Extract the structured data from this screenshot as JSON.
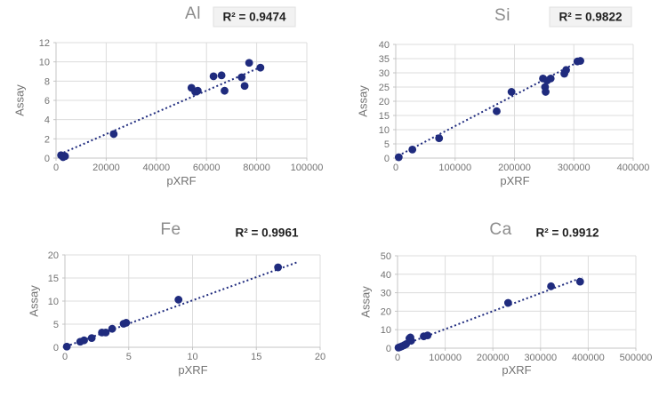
{
  "colors": {
    "background": "#ffffff",
    "point": "#1f2b7e",
    "trendline": "#1f2b7e",
    "gridline": "#dcdcdc",
    "axis_line": "#c4c4c4",
    "title_text": "#8c8c8c",
    "tick_text": "#737373",
    "axis_label_text": "#737373",
    "r2_text": "#1f1f1f",
    "r2_box_fill": "#f2f2f2",
    "r2_box_border": "#e0e0e0"
  },
  "chart_data": [
    {
      "type": "scatter",
      "title": "Al",
      "r2_label": "R² = 0.9474",
      "r2_boxed": true,
      "xlabel": "pXRF",
      "ylabel": "Assay",
      "xlim": [
        0,
        100000
      ],
      "ylim": [
        0,
        12
      ],
      "xticks": [
        0,
        20000,
        40000,
        60000,
        80000,
        100000
      ],
      "yticks": [
        0,
        2,
        4,
        6,
        8,
        10,
        12
      ],
      "grid": true,
      "legend": "none",
      "points": [
        [
          2000,
          0.3
        ],
        [
          2800,
          0.1
        ],
        [
          3600,
          0.2
        ],
        [
          23000,
          2.5
        ],
        [
          54000,
          7.3
        ],
        [
          55500,
          6.9
        ],
        [
          56500,
          7.0
        ],
        [
          62800,
          8.5
        ],
        [
          66000,
          8.6
        ],
        [
          67200,
          7.0
        ],
        [
          74000,
          8.4
        ],
        [
          75200,
          7.5
        ],
        [
          77000,
          9.9
        ],
        [
          81500,
          9.4
        ]
      ],
      "trendline": {
        "style": "dotted",
        "x1": 1500,
        "y1": 0.4,
        "x2": 82000,
        "y2": 9.5
      }
    },
    {
      "type": "scatter",
      "title": "Si",
      "r2_label": "R² = 0.9822",
      "r2_boxed": true,
      "xlabel": "pXRF",
      "ylabel": "Assay",
      "xlim": [
        0,
        400000
      ],
      "ylim": [
        0,
        40
      ],
      "xticks": [
        0,
        100000,
        200000,
        300000,
        400000
      ],
      "yticks": [
        0,
        5,
        10,
        15,
        20,
        25,
        30,
        35,
        40
      ],
      "grid": true,
      "legend": "none",
      "points": [
        [
          5000,
          0.3
        ],
        [
          28000,
          3.0
        ],
        [
          73000,
          7.0
        ],
        [
          170000,
          16.5
        ],
        [
          195000,
          23.3
        ],
        [
          248000,
          28.0
        ],
        [
          251500,
          25.0
        ],
        [
          252500,
          23.3
        ],
        [
          255000,
          27.3
        ],
        [
          261000,
          28.0
        ],
        [
          284000,
          29.7
        ],
        [
          287000,
          31.0
        ],
        [
          306000,
          34.0
        ],
        [
          311000,
          34.2
        ]
      ],
      "trendline": {
        "style": "dotted",
        "x1": 4000,
        "y1": 0.8,
        "x2": 316000,
        "y2": 34.8
      }
    },
    {
      "type": "scatter",
      "title": "Fe",
      "r2_label": "R² = 0.9961",
      "r2_boxed": false,
      "xlabel": "pXRF",
      "ylabel": "Assay",
      "xlim": [
        0,
        20
      ],
      "ylim": [
        0,
        20
      ],
      "xticks": [
        0,
        5,
        10,
        15,
        20
      ],
      "yticks": [
        0,
        5,
        10,
        15,
        20
      ],
      "grid": true,
      "legend": "none",
      "points": [
        [
          0.15,
          0.15
        ],
        [
          1.2,
          1.2
        ],
        [
          1.5,
          1.5
        ],
        [
          2.1,
          2.0
        ],
        [
          2.9,
          3.2
        ],
        [
          3.2,
          3.2
        ],
        [
          3.7,
          4.0
        ],
        [
          4.6,
          5.1
        ],
        [
          4.8,
          5.3
        ],
        [
          8.9,
          10.3
        ],
        [
          16.7,
          17.3
        ]
      ],
      "trendline": {
        "style": "dotted",
        "x1": 0.1,
        "y1": 0.2,
        "x2": 18.2,
        "y2": 18.4
      }
    },
    {
      "type": "scatter",
      "title": "Ca",
      "r2_label": "R² = 0.9912",
      "r2_boxed": false,
      "xlabel": "pXRF",
      "ylabel": "Assay",
      "xlim": [
        0,
        500000
      ],
      "ylim": [
        0,
        50
      ],
      "xticks": [
        0,
        100000,
        200000,
        300000,
        400000,
        500000
      ],
      "yticks": [
        0,
        10,
        20,
        30,
        40,
        50
      ],
      "grid": true,
      "legend": "none",
      "points": [
        [
          2000,
          0.3
        ],
        [
          5000,
          0.6
        ],
        [
          9000,
          1.0
        ],
        [
          14000,
          1.6
        ],
        [
          18000,
          2.2
        ],
        [
          25000,
          5.3
        ],
        [
          27000,
          5.8
        ],
        [
          28500,
          4.0
        ],
        [
          55000,
          6.4
        ],
        [
          63000,
          6.9
        ],
        [
          232000,
          24.5
        ],
        [
          322000,
          33.5
        ],
        [
          383000,
          36.0
        ]
      ],
      "trendline": {
        "style": "dotted",
        "x1": 2000,
        "y1": 0.8,
        "x2": 388000,
        "y2": 38.3
      }
    }
  ]
}
